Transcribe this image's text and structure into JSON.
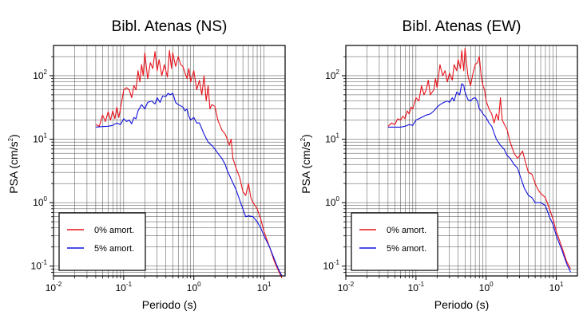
{
  "figure": {
    "colors": {
      "undamped": "#e8131b",
      "damped": "#1010e0",
      "grid": "#4a4a4a",
      "frame": "#000000"
    }
  },
  "chart_data": [
    {
      "type": "line",
      "title": "Bibl. Atenas (NS)",
      "xlabel": "Periodo (s)",
      "ylabel_main": "PSA (cm/s",
      "ylabel_exp": "2",
      "ylabel_tail": ")",
      "xscale": "log",
      "yscale": "log",
      "xlim": [
        0.01,
        20
      ],
      "ylim": [
        0.07,
        300
      ],
      "grid": true,
      "legend": "bottom-left",
      "xticks": [
        {
          "value": 0.01,
          "base": "10",
          "exp": "-2"
        },
        {
          "value": 0.1,
          "base": "10",
          "exp": "-1"
        },
        {
          "value": 1,
          "base": "10",
          "exp": "0"
        },
        {
          "value": 10,
          "base": "10",
          "exp": "1"
        }
      ],
      "yticks": [
        {
          "value": 0.1,
          "base": "10",
          "exp": "-1"
        },
        {
          "value": 1,
          "base": "10",
          "exp": "0"
        },
        {
          "value": 10,
          "base": "10",
          "exp": "1"
        },
        {
          "value": 100,
          "base": "10",
          "exp": "2"
        }
      ],
      "series": [
        {
          "name": "0% amort.",
          "color_key": "undamped",
          "points": [
            [
              0.04,
              17
            ],
            [
              0.045,
              16
            ],
            [
              0.05,
              24
            ],
            [
              0.055,
              19
            ],
            [
              0.06,
              27
            ],
            [
              0.065,
              20
            ],
            [
              0.07,
              28
            ],
            [
              0.075,
              21
            ],
            [
              0.08,
              32
            ],
            [
              0.085,
              22
            ],
            [
              0.09,
              30
            ],
            [
              0.1,
              60
            ],
            [
              0.11,
              65
            ],
            [
              0.12,
              60
            ],
            [
              0.13,
              45
            ],
            [
              0.14,
              70
            ],
            [
              0.15,
              60
            ],
            [
              0.16,
              120
            ],
            [
              0.17,
              80
            ],
            [
              0.18,
              150
            ],
            [
              0.19,
              100
            ],
            [
              0.2,
              230
            ],
            [
              0.22,
              90
            ],
            [
              0.24,
              160
            ],
            [
              0.26,
              130
            ],
            [
              0.28,
              240
            ],
            [
              0.3,
              120
            ],
            [
              0.32,
              180
            ],
            [
              0.35,
              100
            ],
            [
              0.38,
              150
            ],
            [
              0.42,
              95
            ],
            [
              0.45,
              250
            ],
            [
              0.48,
              130
            ],
            [
              0.5,
              230
            ],
            [
              0.55,
              140
            ],
            [
              0.6,
              200
            ],
            [
              0.65,
              150
            ],
            [
              0.7,
              140
            ],
            [
              0.75,
              110
            ],
            [
              0.8,
              90
            ],
            [
              0.85,
              130
            ],
            [
              0.9,
              80
            ],
            [
              1.0,
              120
            ],
            [
              1.1,
              60
            ],
            [
              1.2,
              85
            ],
            [
              1.3,
              50
            ],
            [
              1.4,
              100
            ],
            [
              1.5,
              40
            ],
            [
              1.6,
              70
            ],
            [
              1.7,
              30
            ],
            [
              1.8,
              35
            ],
            [
              2.0,
              33
            ],
            [
              2.2,
              20
            ],
            [
              2.5,
              14
            ],
            [
              2.8,
              12
            ],
            [
              3.0,
              10
            ],
            [
              3.2,
              8
            ],
            [
              3.4,
              10
            ],
            [
              3.6,
              5
            ],
            [
              4.0,
              3.5
            ],
            [
              4.5,
              2.5
            ],
            [
              5.0,
              1.5
            ],
            [
              5.5,
              1.3
            ],
            [
              6.0,
              2.0
            ],
            [
              6.5,
              1.2
            ],
            [
              7.0,
              1.0
            ],
            [
              8.0,
              0.8
            ],
            [
              9.0,
              0.55
            ],
            [
              10,
              0.35
            ],
            [
              12,
              0.2
            ],
            [
              14,
              0.12
            ],
            [
              16,
              0.085
            ],
            [
              18,
              0.065
            ]
          ]
        },
        {
          "name": "5% amort.",
          "color_key": "damped",
          "points": [
            [
              0.04,
              15.5
            ],
            [
              0.05,
              15.8
            ],
            [
              0.06,
              16
            ],
            [
              0.07,
              16.5
            ],
            [
              0.08,
              18
            ],
            [
              0.09,
              17
            ],
            [
              0.1,
              21
            ],
            [
              0.11,
              19
            ],
            [
              0.12,
              20
            ],
            [
              0.13,
              17.5
            ],
            [
              0.14,
              22
            ],
            [
              0.15,
              21
            ],
            [
              0.16,
              28
            ],
            [
              0.18,
              35
            ],
            [
              0.2,
              30
            ],
            [
              0.22,
              38
            ],
            [
              0.25,
              40
            ],
            [
              0.28,
              36
            ],
            [
              0.3,
              45
            ],
            [
              0.33,
              38
            ],
            [
              0.36,
              48
            ],
            [
              0.4,
              47
            ],
            [
              0.43,
              53
            ],
            [
              0.46,
              50
            ],
            [
              0.5,
              53
            ],
            [
              0.55,
              38
            ],
            [
              0.6,
              35
            ],
            [
              0.7,
              32
            ],
            [
              0.75,
              28
            ],
            [
              0.8,
              30
            ],
            [
              0.85,
              23
            ],
            [
              0.9,
              20
            ],
            [
              1.0,
              22
            ],
            [
              1.1,
              18
            ],
            [
              1.2,
              18
            ],
            [
              1.4,
              12
            ],
            [
              1.6,
              9
            ],
            [
              1.8,
              8
            ],
            [
              2.0,
              7
            ],
            [
              2.2,
              6
            ],
            [
              2.5,
              5
            ],
            [
              2.8,
              4
            ],
            [
              3.0,
              3.2
            ],
            [
              3.5,
              2.2
            ],
            [
              4.0,
              1.6
            ],
            [
              4.5,
              1.1
            ],
            [
              5.0,
              0.8
            ],
            [
              5.5,
              0.6
            ],
            [
              6.0,
              0.62
            ],
            [
              7.0,
              0.6
            ],
            [
              8.0,
              0.5
            ],
            [
              9.0,
              0.4
            ],
            [
              10,
              0.3
            ],
            [
              12,
              0.2
            ],
            [
              14,
              0.13
            ],
            [
              16,
              0.09
            ],
            [
              18,
              0.07
            ]
          ]
        }
      ]
    },
    {
      "type": "line",
      "title": "Bibl. Atenas (EW)",
      "xlabel": "Periodo (s)",
      "ylabel_main": "PSA (cm/s",
      "ylabel_exp": "2",
      "ylabel_tail": ")",
      "xscale": "log",
      "yscale": "log",
      "xlim": [
        0.01,
        20
      ],
      "ylim": [
        0.07,
        300
      ],
      "grid": true,
      "legend": "bottom-left",
      "xticks": [
        {
          "value": 0.01,
          "base": "10",
          "exp": "-2"
        },
        {
          "value": 0.1,
          "base": "10",
          "exp": "-1"
        },
        {
          "value": 1,
          "base": "10",
          "exp": "0"
        },
        {
          "value": 10,
          "base": "10",
          "exp": "1"
        }
      ],
      "yticks": [
        {
          "value": 0.1,
          "base": "10",
          "exp": "-1"
        },
        {
          "value": 1,
          "base": "10",
          "exp": "0"
        },
        {
          "value": 10,
          "base": "10",
          "exp": "1"
        },
        {
          "value": 100,
          "base": "10",
          "exp": "2"
        }
      ],
      "series": [
        {
          "name": "0% amort.",
          "color_key": "undamped",
          "points": [
            [
              0.04,
              16
            ],
            [
              0.045,
              18
            ],
            [
              0.05,
              17
            ],
            [
              0.055,
              21
            ],
            [
              0.06,
              20
            ],
            [
              0.065,
              23
            ],
            [
              0.07,
              21
            ],
            [
              0.075,
              28
            ],
            [
              0.08,
              25
            ],
            [
              0.085,
              32
            ],
            [
              0.09,
              30
            ],
            [
              0.1,
              45
            ],
            [
              0.11,
              40
            ],
            [
              0.12,
              70
            ],
            [
              0.13,
              50
            ],
            [
              0.14,
              60
            ],
            [
              0.15,
              85
            ],
            [
              0.16,
              50
            ],
            [
              0.17,
              55
            ],
            [
              0.18,
              60
            ],
            [
              0.19,
              90
            ],
            [
              0.2,
              65
            ],
            [
              0.22,
              150
            ],
            [
              0.24,
              100
            ],
            [
              0.26,
              120
            ],
            [
              0.28,
              80
            ],
            [
              0.3,
              110
            ],
            [
              0.33,
              85
            ],
            [
              0.35,
              150
            ],
            [
              0.38,
              120
            ],
            [
              0.4,
              180
            ],
            [
              0.43,
              130
            ],
            [
              0.45,
              250
            ],
            [
              0.48,
              120
            ],
            [
              0.5,
              270
            ],
            [
              0.55,
              100
            ],
            [
              0.6,
              70
            ],
            [
              0.65,
              110
            ],
            [
              0.7,
              150
            ],
            [
              0.75,
              160
            ],
            [
              0.8,
              200
            ],
            [
              0.85,
              100
            ],
            [
              0.9,
              70
            ],
            [
              0.95,
              60
            ],
            [
              1.0,
              40
            ],
            [
              1.1,
              30
            ],
            [
              1.2,
              25
            ],
            [
              1.3,
              18
            ],
            [
              1.4,
              25
            ],
            [
              1.5,
              20
            ],
            [
              1.6,
              45
            ],
            [
              1.7,
              20
            ],
            [
              2.0,
              14
            ],
            [
              2.2,
              9
            ],
            [
              2.5,
              6
            ],
            [
              2.8,
              5
            ],
            [
              3.0,
              5.5
            ],
            [
              3.3,
              6.5
            ],
            [
              3.6,
              4.5
            ],
            [
              4.0,
              3.0
            ],
            [
              4.5,
              2.8
            ],
            [
              5.0,
              2.0
            ],
            [
              5.5,
              1.6
            ],
            [
              6.0,
              1.4
            ],
            [
              7.0,
              1.2
            ],
            [
              8.0,
              0.8
            ],
            [
              9.0,
              0.55
            ],
            [
              10,
              0.35
            ],
            [
              12,
              0.2
            ],
            [
              14,
              0.12
            ],
            [
              16,
              0.09
            ]
          ]
        },
        {
          "name": "5% amort.",
          "color_key": "damped",
          "points": [
            [
              0.04,
              15.5
            ],
            [
              0.05,
              15.5
            ],
            [
              0.06,
              15.5
            ],
            [
              0.07,
              16
            ],
            [
              0.08,
              17
            ],
            [
              0.09,
              16.5
            ],
            [
              0.1,
              20
            ],
            [
              0.12,
              22
            ],
            [
              0.14,
              24
            ],
            [
              0.16,
              25
            ],
            [
              0.18,
              28
            ],
            [
              0.2,
              32
            ],
            [
              0.22,
              35
            ],
            [
              0.25,
              38
            ],
            [
              0.28,
              40
            ],
            [
              0.3,
              38
            ],
            [
              0.33,
              45
            ],
            [
              0.35,
              40
            ],
            [
              0.38,
              55
            ],
            [
              0.42,
              50
            ],
            [
              0.45,
              75
            ],
            [
              0.48,
              70
            ],
            [
              0.5,
              55
            ],
            [
              0.55,
              42
            ],
            [
              0.6,
              40
            ],
            [
              0.65,
              44
            ],
            [
              0.7,
              45
            ],
            [
              0.75,
              40
            ],
            [
              0.8,
              30
            ],
            [
              0.85,
              28
            ],
            [
              0.9,
              25
            ],
            [
              1.0,
              22
            ],
            [
              1.1,
              18
            ],
            [
              1.2,
              16
            ],
            [
              1.4,
              10
            ],
            [
              1.6,
              8
            ],
            [
              1.8,
              7
            ],
            [
              2.0,
              5.5
            ],
            [
              2.2,
              5
            ],
            [
              2.5,
              4
            ],
            [
              2.8,
              3.5
            ],
            [
              3.0,
              2.8
            ],
            [
              3.5,
              1.7
            ],
            [
              4.0,
              1.3
            ],
            [
              4.5,
              1.2
            ],
            [
              5.0,
              1.0
            ],
            [
              5.5,
              1.0
            ],
            [
              6.0,
              1.0
            ],
            [
              7.0,
              0.9
            ],
            [
              8.0,
              0.6
            ],
            [
              9.0,
              0.45
            ],
            [
              10,
              0.3
            ],
            [
              12,
              0.18
            ],
            [
              14,
              0.11
            ],
            [
              16,
              0.08
            ]
          ]
        }
      ]
    }
  ]
}
